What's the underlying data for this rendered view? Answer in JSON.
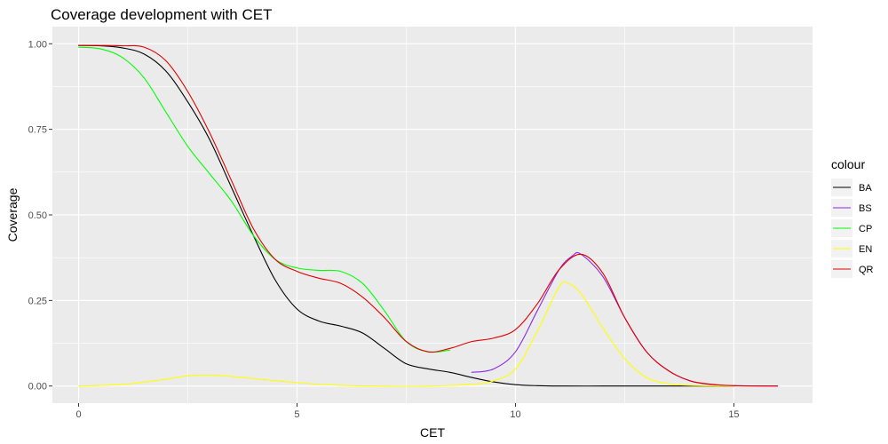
{
  "chart_data": {
    "type": "line",
    "title": "Coverage development with CET",
    "xlabel": "CET",
    "ylabel": "Coverage",
    "xlim": [
      -0.6,
      16.8
    ],
    "ylim": [
      -0.05,
      1.05
    ],
    "x_ticks": [
      0,
      5,
      10,
      15
    ],
    "y_ticks": [
      0.0,
      0.25,
      0.5,
      0.75,
      1.0
    ],
    "x_tick_labels": [
      "0",
      "5",
      "10",
      "15"
    ],
    "y_tick_labels": [
      "0.00",
      "0.25",
      "0.50",
      "0.75",
      "1.00"
    ],
    "grid": true,
    "legend": {
      "title": "colour",
      "placement": "right"
    },
    "series": [
      {
        "name": "BA",
        "color": "#000000",
        "points": [
          [
            0,
            0.995
          ],
          [
            0.5,
            0.994
          ],
          [
            1,
            0.988
          ],
          [
            1.5,
            0.97
          ],
          [
            2,
            0.92
          ],
          [
            2.5,
            0.83
          ],
          [
            3,
            0.72
          ],
          [
            3.5,
            0.58
          ],
          [
            4,
            0.44
          ],
          [
            4.5,
            0.31
          ],
          [
            5,
            0.225
          ],
          [
            5.5,
            0.19
          ],
          [
            6,
            0.175
          ],
          [
            6.5,
            0.155
          ],
          [
            7,
            0.11
          ],
          [
            7.5,
            0.065
          ],
          [
            8,
            0.05
          ],
          [
            8.5,
            0.04
          ],
          [
            9,
            0.025
          ],
          [
            9.5,
            0.012
          ],
          [
            10,
            0.004
          ],
          [
            10.5,
            0.001
          ],
          [
            11,
            0
          ],
          [
            12,
            0
          ],
          [
            13,
            0
          ],
          [
            14,
            0
          ],
          [
            15,
            0
          ]
        ]
      },
      {
        "name": "BS",
        "color": "#8a2be2",
        "points": [
          [
            9,
            0.04
          ],
          [
            9.5,
            0.05
          ],
          [
            10,
            0.1
          ],
          [
            10.5,
            0.22
          ],
          [
            11,
            0.34
          ],
          [
            11.3,
            0.38
          ],
          [
            11.5,
            0.385
          ],
          [
            12,
            0.32
          ],
          [
            12.5,
            0.2
          ],
          [
            13,
            0.1
          ],
          [
            13.5,
            0.045
          ],
          [
            14,
            0.015
          ],
          [
            14.5,
            0.004
          ],
          [
            15,
            0.001
          ],
          [
            16,
            0
          ]
        ]
      },
      {
        "name": "CP",
        "color": "#00ff00",
        "points": [
          [
            0,
            0.99
          ],
          [
            0.5,
            0.985
          ],
          [
            1,
            0.96
          ],
          [
            1.5,
            0.9
          ],
          [
            2,
            0.8
          ],
          [
            2.5,
            0.7
          ],
          [
            3,
            0.62
          ],
          [
            3.5,
            0.54
          ],
          [
            4,
            0.44
          ],
          [
            4.5,
            0.37
          ],
          [
            5,
            0.345
          ],
          [
            5.5,
            0.338
          ],
          [
            6,
            0.335
          ],
          [
            6.5,
            0.3
          ],
          [
            7,
            0.22
          ],
          [
            7.5,
            0.13
          ],
          [
            8,
            0.1
          ],
          [
            8.5,
            0.105
          ]
        ]
      },
      {
        "name": "EN",
        "color": "#ffff00",
        "points": [
          [
            0,
            0
          ],
          [
            1,
            0.005
          ],
          [
            2,
            0.02
          ],
          [
            2.5,
            0.03
          ],
          [
            3,
            0.032
          ],
          [
            3.5,
            0.028
          ],
          [
            4,
            0.022
          ],
          [
            5,
            0.01
          ],
          [
            6,
            0.002
          ],
          [
            7,
            0
          ],
          [
            8,
            0
          ],
          [
            9,
            0.005
          ],
          [
            9.5,
            0.015
          ],
          [
            10,
            0.05
          ],
          [
            10.5,
            0.16
          ],
          [
            11,
            0.29
          ],
          [
            11.2,
            0.3
          ],
          [
            11.5,
            0.27
          ],
          [
            12,
            0.17
          ],
          [
            12.5,
            0.08
          ],
          [
            13,
            0.025
          ],
          [
            13.5,
            0.007
          ],
          [
            14,
            0.002
          ],
          [
            15,
            0
          ]
        ]
      },
      {
        "name": "QR",
        "color": "#e00000",
        "points": [
          [
            0,
            0.995
          ],
          [
            0.5,
            0.995
          ],
          [
            1,
            0.994
          ],
          [
            1.5,
            0.99
          ],
          [
            2,
            0.95
          ],
          [
            2.5,
            0.86
          ],
          [
            3,
            0.74
          ],
          [
            3.5,
            0.6
          ],
          [
            4,
            0.46
          ],
          [
            4.5,
            0.37
          ],
          [
            5,
            0.335
          ],
          [
            5.5,
            0.315
          ],
          [
            6,
            0.3
          ],
          [
            6.5,
            0.26
          ],
          [
            7,
            0.2
          ],
          [
            7.5,
            0.13
          ],
          [
            8,
            0.1
          ],
          [
            8.5,
            0.11
          ],
          [
            9,
            0.13
          ],
          [
            9.5,
            0.14
          ],
          [
            10,
            0.165
          ],
          [
            10.5,
            0.24
          ],
          [
            11,
            0.34
          ],
          [
            11.5,
            0.385
          ],
          [
            12,
            0.33
          ],
          [
            12.5,
            0.2
          ],
          [
            13,
            0.1
          ],
          [
            13.5,
            0.045
          ],
          [
            14,
            0.015
          ],
          [
            14.5,
            0.005
          ],
          [
            15,
            0.001
          ],
          [
            16,
            0
          ]
        ]
      }
    ]
  }
}
